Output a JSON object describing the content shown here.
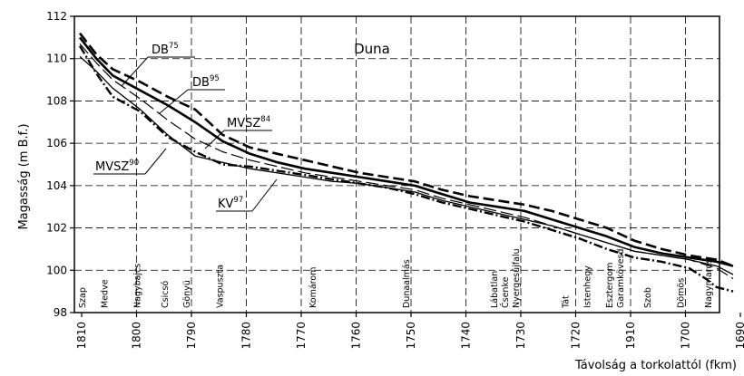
{
  "chart_data": {
    "type": "line",
    "title": "Duna",
    "xlabel": "Távolság a torkolattól (fkm)",
    "ylabel": "Magasság (m B.f.)",
    "ylim": [
      98,
      112
    ],
    "yticks": [
      "98",
      "100",
      "102",
      "104",
      "106",
      "108",
      "110",
      "112"
    ],
    "xticks": [
      "1810",
      "1800",
      "1790",
      "1780",
      "1770",
      "1760",
      "1750",
      "1740",
      "1730",
      "1720",
      "1910",
      "1700",
      "1690"
    ],
    "grid": "dashed",
    "places": [
      {
        "name": "Szap",
        "fkm": 1810.5
      },
      {
        "name": "Medve",
        "fkm": 1806.5
      },
      {
        "name": "Nagybajcs",
        "fkm": 1800.5
      },
      {
        "name": "Csicsó",
        "fkm": 1795.5
      },
      {
        "name": "Gönyü",
        "fkm": 1791.5
      },
      {
        "name": "Vaspuszta",
        "fkm": 1785.5
      },
      {
        "name": "Komárom",
        "fkm": 1768.5
      },
      {
        "name": "Dunaalmás",
        "fkm": 1751.5
      },
      {
        "name": "Lábatlan",
        "fkm": 1735.5
      },
      {
        "name": "Čsenke",
        "fkm": 1733.5
      },
      {
        "name": "Nyergesújfalu",
        "fkm": 1731.5
      },
      {
        "name": "Tát",
        "fkm": 1722.5
      },
      {
        "name": "Istenhegy",
        "fkm": 1718.5
      },
      {
        "name": "Esztergom",
        "fkm": 1714.5
      },
      {
        "name": "Garamkövesd",
        "fkm": 1712.5
      },
      {
        "name": "Szob",
        "fkm": 1707.5
      },
      {
        "name": "Dömös",
        "fkm": 1701.5
      },
      {
        "name": "Nagymaros",
        "fkm": 1696.5
      }
    ],
    "series": [
      {
        "name": "DB",
        "sup": "75",
        "dash": "long-dash",
        "width": 2.6,
        "x": [
          1811,
          1808,
          1805,
          1800,
          1795,
          1790,
          1785,
          1780,
          1775,
          1770,
          1765,
          1760,
          1755,
          1750,
          1745,
          1740,
          1735,
          1730,
          1725,
          1720,
          1715,
          1710,
          1705,
          1700,
          1695,
          1692
        ],
        "y": [
          111.2,
          110.2,
          109.5,
          108.9,
          108.2,
          107.6,
          106.4,
          105.8,
          105.5,
          105.2,
          104.9,
          104.6,
          104.4,
          104.2,
          103.8,
          103.5,
          103.3,
          103.1,
          102.8,
          102.4,
          102.0,
          101.4,
          101.0,
          100.7,
          100.5,
          100.2
        ]
      },
      {
        "name": "DB",
        "sup": "95",
        "dash": "solid",
        "width": 2.6,
        "x": [
          1811,
          1808,
          1805,
          1800,
          1795,
          1790,
          1785,
          1780,
          1775,
          1770,
          1765,
          1760,
          1755,
          1750,
          1745,
          1740,
          1735,
          1730,
          1725,
          1720,
          1715,
          1710,
          1705,
          1700,
          1695,
          1692
        ],
        "y": [
          111.0,
          110.0,
          109.2,
          108.5,
          107.8,
          107.0,
          106.1,
          105.5,
          105.1,
          104.8,
          104.6,
          104.4,
          104.2,
          104.0,
          103.6,
          103.2,
          103.0,
          102.8,
          102.4,
          102.0,
          101.6,
          101.1,
          100.8,
          100.6,
          100.4,
          100.2
        ]
      },
      {
        "name": "MVSZ",
        "sup": "84",
        "dash": "long-dash-thin",
        "width": 1.2,
        "x": [
          1811,
          1808,
          1805,
          1800,
          1795,
          1790,
          1785,
          1780,
          1775,
          1770,
          1765,
          1760,
          1755,
          1750,
          1745,
          1740,
          1735,
          1730,
          1725,
          1720,
          1715,
          1710,
          1705,
          1700,
          1695,
          1692
        ],
        "y": [
          110.7,
          109.8,
          109.0,
          108.1,
          107.1,
          106.2,
          105.6,
          105.2,
          104.9,
          104.6,
          104.4,
          104.2,
          104.0,
          103.8,
          103.4,
          103.1,
          102.8,
          102.5,
          102.1,
          101.7,
          101.3,
          100.9,
          100.7,
          100.5,
          100.1,
          99.6
        ]
      },
      {
        "name": "MVSZ",
        "sup": "90",
        "dash": "dash-dot",
        "width": 2.4,
        "x": [
          1811,
          1808,
          1805,
          1800,
          1795,
          1790,
          1785,
          1780,
          1775,
          1770,
          1765,
          1760,
          1755,
          1750,
          1745,
          1740,
          1735,
          1730,
          1725,
          1720,
          1715,
          1710,
          1705,
          1700,
          1697,
          1695,
          1692
        ],
        "y": [
          110.6,
          109.3,
          108.2,
          107.5,
          106.3,
          105.6,
          105.0,
          104.9,
          104.7,
          104.5,
          104.3,
          104.1,
          103.9,
          103.6,
          103.2,
          102.9,
          102.6,
          102.3,
          101.9,
          101.5,
          101.0,
          100.6,
          100.4,
          100.1,
          99.6,
          99.2,
          99.0
        ]
      },
      {
        "name": "KV",
        "sup": "97",
        "dash": "solid-thin",
        "width": 1.3,
        "x": [
          1811,
          1808,
          1805,
          1800,
          1795,
          1790,
          1785,
          1780,
          1775,
          1770,
          1765,
          1760,
          1755,
          1750,
          1745,
          1740,
          1735,
          1730,
          1725,
          1720,
          1715,
          1710,
          1705,
          1700,
          1695,
          1692
        ],
        "y": [
          110.1,
          109.4,
          108.6,
          107.6,
          106.4,
          105.4,
          105.1,
          104.8,
          104.6,
          104.4,
          104.2,
          104.1,
          103.9,
          103.7,
          103.3,
          103.0,
          102.7,
          102.4,
          102.1,
          101.7,
          101.3,
          100.9,
          100.7,
          100.5,
          100.2,
          99.8
        ]
      }
    ]
  }
}
